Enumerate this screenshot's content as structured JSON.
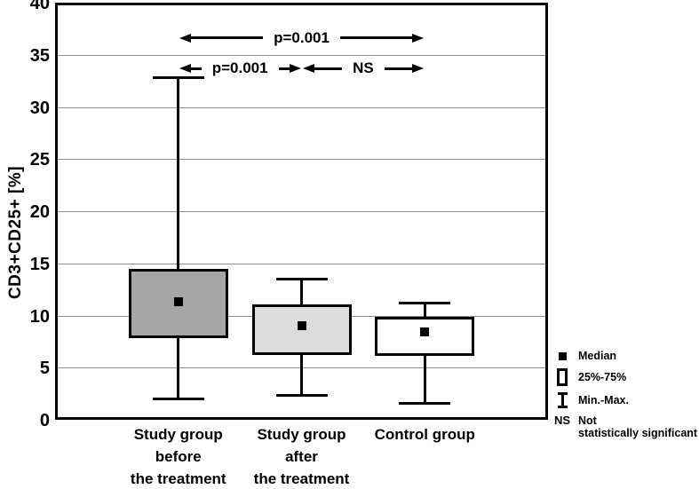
{
  "chart_data": {
    "type": "boxplot",
    "ylabel": "CD3+CD25+  [%]",
    "ylim": [
      0,
      40
    ],
    "yticks": [
      0,
      5,
      10,
      15,
      20,
      25,
      30,
      35,
      40
    ],
    "grid": "horizontal-gray-lines",
    "categories": [
      "Study group before the treatment",
      "Study group after the treatment",
      "Control group"
    ],
    "groups": [
      {
        "label_lines": [
          "Study group",
          "before",
          "the treatment"
        ],
        "min": 2.0,
        "q1": 7.8,
        "median": 11.3,
        "q3": 14.5,
        "max": 32.8,
        "fill": "#a6a6a6"
      },
      {
        "label_lines": [
          "Study group",
          "after",
          "the treatment"
        ],
        "min": 2.3,
        "q1": 6.2,
        "median": 9.0,
        "q3": 11.1,
        "max": 13.5,
        "fill": "#dcdcdc"
      },
      {
        "label_lines": [
          "Control group"
        ],
        "min": 1.6,
        "q1": 6.1,
        "median": 8.4,
        "q3": 9.9,
        "max": 11.2,
        "fill": "#ffffff"
      }
    ],
    "annotations": [
      {
        "label": "p=0.001",
        "from_group": 0,
        "to_group": 2,
        "y_value": 36.6
      },
      {
        "label": "p=0.001",
        "from_group": 0,
        "to_group": 1,
        "y_value": 33.7
      },
      {
        "label": "NS",
        "from_group": 1,
        "to_group": 2,
        "y_value": 33.7
      }
    ],
    "legend": {
      "items": [
        {
          "icon": "median-square",
          "label_lines": [
            "Median"
          ]
        },
        {
          "icon": "box-25-75",
          "label_lines": [
            "25%-75%"
          ]
        },
        {
          "icon": "min-max-whisker",
          "label_lines": [
            "Min.-Max."
          ]
        },
        {
          "icon": "ns-text",
          "icon_text": "NS",
          "label_lines": [
            "Not",
            "statistically significant"
          ]
        }
      ]
    },
    "colors": {
      "box_border": "#000000",
      "gridline": "#8f8f8f",
      "background": "#ffffff"
    }
  }
}
